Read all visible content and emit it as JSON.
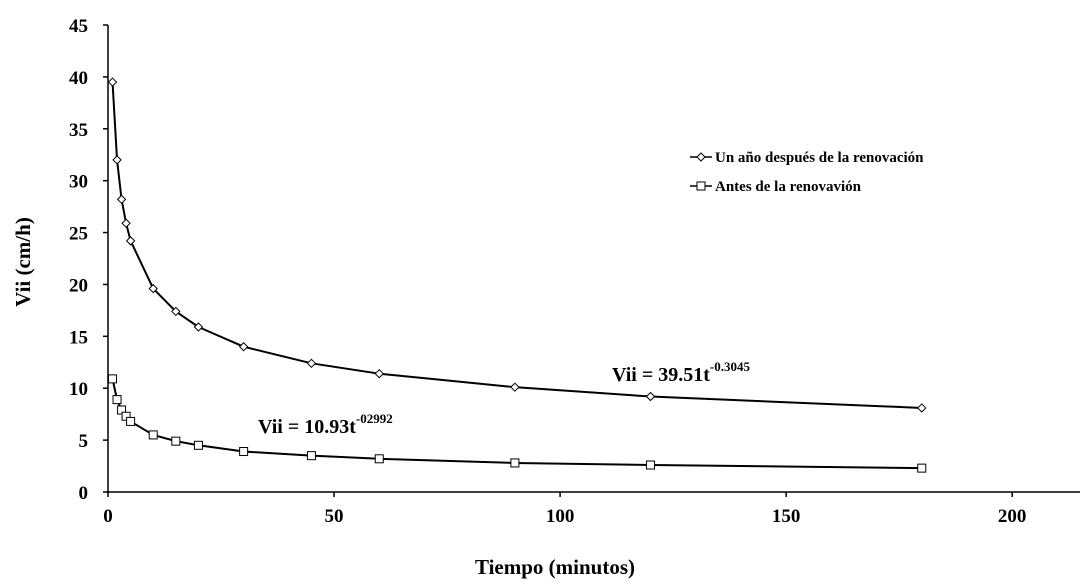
{
  "chart_data": {
    "type": "line",
    "xlabel": "Tiempo (minutos)",
    "ylabel": "Vii (cm/h)",
    "xlim": [
      0,
      215
    ],
    "ylim": [
      0,
      45
    ],
    "x_ticks": [
      0,
      50,
      100,
      150,
      200
    ],
    "y_ticks": [
      0,
      5,
      10,
      15,
      20,
      25,
      30,
      35,
      40,
      45
    ],
    "x_tick_labels": [
      "0",
      "50",
      "100",
      "150",
      "200"
    ],
    "y_tick_labels": [
      "0",
      "5",
      "10",
      "15",
      "20",
      "25",
      "30",
      "35",
      "40",
      "45"
    ],
    "grid": false,
    "legend_position": "right",
    "series": [
      {
        "name": "Un año después de la renovación",
        "marker": "diamond",
        "color": "#000000",
        "x": [
          1,
          2,
          3,
          4,
          5,
          10,
          15,
          20,
          30,
          45,
          60,
          90,
          120,
          180
        ],
        "y": [
          39.5,
          32.0,
          28.2,
          25.9,
          24.2,
          19.6,
          17.4,
          15.9,
          14.0,
          12.4,
          11.4,
          10.1,
          9.2,
          8.1
        ]
      },
      {
        "name": "Antes de la renovavión",
        "marker": "square",
        "color": "#000000",
        "x": [
          1,
          2,
          3,
          4,
          5,
          10,
          15,
          20,
          30,
          45,
          60,
          90,
          120,
          180
        ],
        "y": [
          10.9,
          8.9,
          7.9,
          7.3,
          6.8,
          5.5,
          4.9,
          4.5,
          3.9,
          3.5,
          3.2,
          2.8,
          2.6,
          2.3
        ]
      }
    ],
    "annotations": [
      {
        "base": "Vii = 39.51t",
        "exponent": "-0.3045"
      },
      {
        "base": "Vii = 10.93t",
        "exponent": "-02992"
      }
    ]
  }
}
